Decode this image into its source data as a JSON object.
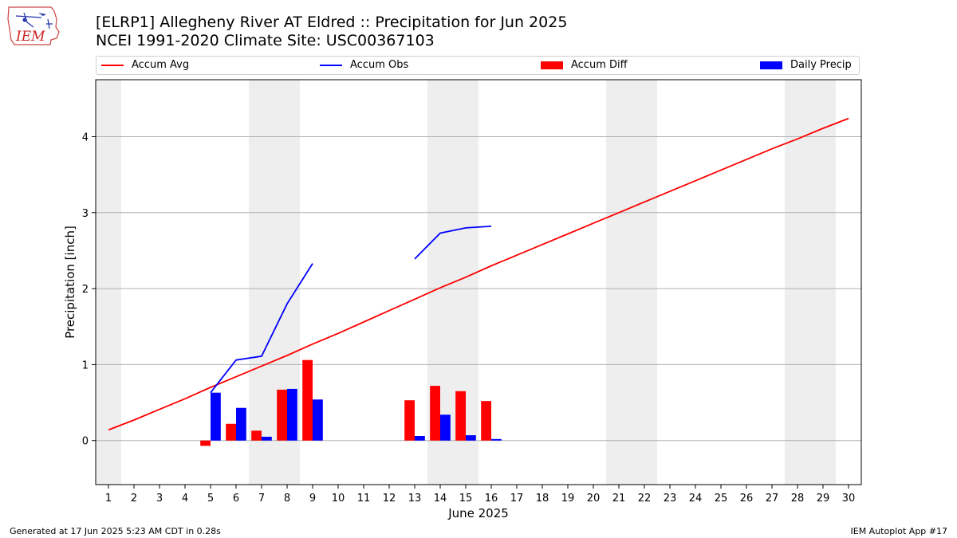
{
  "header": {
    "title_line1": "[ELRP1] Allegheny River  AT Eldred :: Precipitation for Jun 2025",
    "title_line2": "NCEI 1991-2020 Climate Site: USC00367103"
  },
  "logo": {
    "text": "IEM"
  },
  "footer": {
    "left": "Generated at 17 Jun 2025 5:23 AM CDT in 0.28s",
    "right": "IEM Autoplot App #17"
  },
  "chart_data": {
    "type": "bar",
    "xlabel": "June 2025",
    "ylabel": "Precipitation [inch]",
    "xlim": [
      0.5,
      30.5
    ],
    "ylim": [
      -0.58,
      4.75
    ],
    "x_ticks": [
      1,
      2,
      3,
      4,
      5,
      6,
      7,
      8,
      9,
      10,
      11,
      12,
      13,
      14,
      15,
      16,
      17,
      18,
      19,
      20,
      21,
      22,
      23,
      24,
      25,
      26,
      27,
      28,
      29,
      30
    ],
    "y_ticks": [
      0,
      1,
      2,
      3,
      4
    ],
    "grid": "horizontal",
    "weekend_shading": [
      [
        0.5,
        1.5
      ],
      [
        6.5,
        8.5
      ],
      [
        13.5,
        15.5
      ],
      [
        20.5,
        22.5
      ],
      [
        27.5,
        29.5
      ]
    ],
    "legend": {
      "placement": "top",
      "entries": [
        {
          "label": "Accum Avg",
          "kind": "line",
          "color": "#ff0000"
        },
        {
          "label": "Accum Obs",
          "kind": "line",
          "color": "#0000ff"
        },
        {
          "label": "Accum Diff",
          "kind": "bar",
          "color": "#ff0000"
        },
        {
          "label": "Daily Precip",
          "kind": "bar",
          "color": "#0000ff"
        }
      ]
    },
    "series": [
      {
        "name": "Accum Avg",
        "kind": "line",
        "color": "#ff0000",
        "x": [
          1,
          2,
          3,
          4,
          5,
          6,
          7,
          8,
          9,
          10,
          11,
          12,
          13,
          14,
          15,
          16,
          17,
          18,
          19,
          20,
          21,
          22,
          23,
          24,
          25,
          26,
          27,
          28,
          29,
          30
        ],
        "values": [
          0.14,
          0.27,
          0.41,
          0.55,
          0.7,
          0.84,
          0.98,
          1.12,
          1.27,
          1.41,
          1.56,
          1.71,
          1.86,
          2.01,
          2.15,
          2.3,
          2.44,
          2.58,
          2.72,
          2.86,
          3.0,
          3.14,
          3.28,
          3.42,
          3.56,
          3.7,
          3.84,
          3.97,
          4.11,
          4.24
        ]
      },
      {
        "name": "Accum Obs",
        "kind": "line",
        "color": "#0000ff",
        "x": [
          5,
          6,
          7,
          8,
          9,
          10,
          11,
          12,
          13,
          14,
          15,
          16
        ],
        "values": [
          0.63,
          1.06,
          1.11,
          1.8,
          2.33,
          null,
          null,
          null,
          2.39,
          2.73,
          2.8,
          2.82
        ]
      },
      {
        "name": "Accum Diff",
        "kind": "bar",
        "color": "#ff0000",
        "x": [
          5,
          6,
          7,
          8,
          9,
          13,
          14,
          15,
          16
        ],
        "values": [
          -0.07,
          0.22,
          0.13,
          0.67,
          1.06,
          0.53,
          0.72,
          0.65,
          0.52
        ]
      },
      {
        "name": "Daily Precip",
        "kind": "bar",
        "color": "#0000ff",
        "x": [
          5,
          6,
          7,
          8,
          9,
          13,
          14,
          15,
          16
        ],
        "values": [
          0.63,
          0.43,
          0.05,
          0.68,
          0.54,
          0.06,
          0.34,
          0.07,
          0.02
        ]
      }
    ]
  }
}
